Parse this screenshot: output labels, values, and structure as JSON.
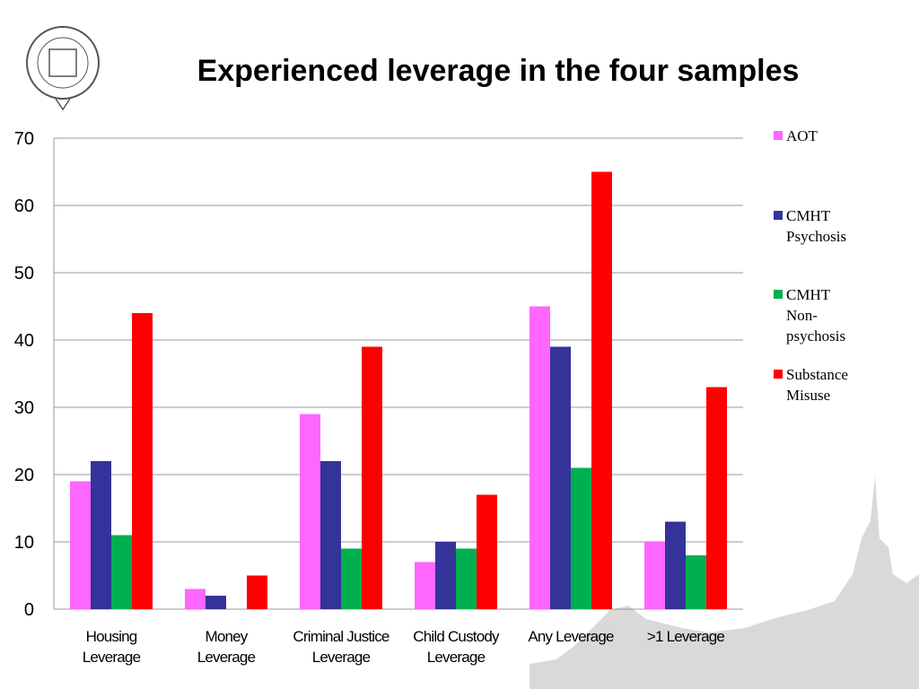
{
  "chart_data": {
    "type": "bar",
    "title": "Experienced leverage in the four samples",
    "categories": [
      "Housing\nLeverage",
      "Money\nLeverage",
      "Criminal Justice\nLeverage",
      "Child Custody\nLeverage",
      "Any Leverage",
      ">1 Leverage"
    ],
    "series": [
      {
        "name": "AOT",
        "color": "#ff66ff",
        "values": [
          19,
          3,
          29,
          7,
          45,
          10
        ]
      },
      {
        "name": "CMHT\nPsychosis",
        "color": "#333399",
        "values": [
          22,
          2,
          22,
          10,
          39,
          13
        ]
      },
      {
        "name": "CMHT\nNon-\npsychosis",
        "color": "#00b050",
        "values": [
          11,
          0,
          9,
          9,
          21,
          8
        ]
      },
      {
        "name": "Substance\nMisuse",
        "color": "#ff0000",
        "values": [
          44,
          5,
          39,
          17,
          65,
          33
        ]
      }
    ],
    "ylim": [
      0,
      70
    ],
    "yticks": [
      0,
      10,
      20,
      30,
      40,
      50,
      60,
      70
    ],
    "grid": true,
    "legend": "right"
  }
}
